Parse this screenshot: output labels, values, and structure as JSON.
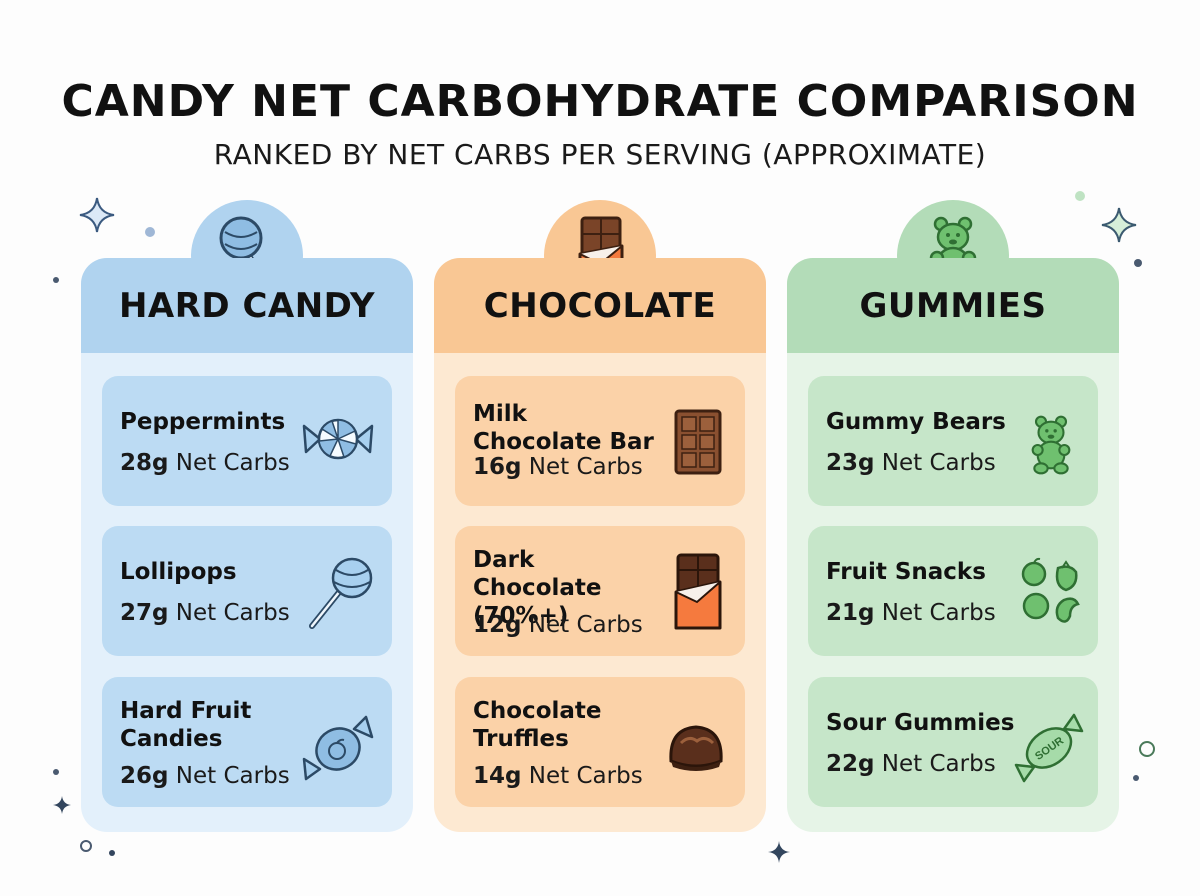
{
  "title": "CANDY NET CARBOHYDRATE COMPARISON",
  "subtitle": "RANKED BY NET CARBS PER SERVING (APPROXIMATE)",
  "colors": {
    "hard_candy": {
      "header": "#b0d3ef",
      "body": "#e3f0fb",
      "card": "#bcdbf3",
      "icon": "#2c4a66"
    },
    "chocolate": {
      "header": "#f9c794",
      "body": "#fde9d2",
      "card": "#fbd2a8",
      "icon": "#6b3a1e"
    },
    "gummies": {
      "header": "#b3dcb8",
      "body": "#e6f4e7",
      "card": "#c6e6c9",
      "icon": "#3f8d43"
    }
  },
  "columns": [
    {
      "heading": "HARD CANDY",
      "icon": "lollipop-icon",
      "items": [
        {
          "name": "Peppermints",
          "grams": "28g",
          "unit": "Net Carbs",
          "icon": "peppermint-icon"
        },
        {
          "name": "Lollipops",
          "grams": "27g",
          "unit": "Net Carbs",
          "icon": "lollipop-icon"
        },
        {
          "name": "Hard Fruit Candies",
          "grams": "26g",
          "unit": "Net Carbs",
          "icon": "wrapped-fruit-candy-icon"
        }
      ]
    },
    {
      "heading": "CHOCOLATE",
      "icon": "chocolate-bar-icon",
      "items": [
        {
          "name": "Milk Chocolate Bar",
          "grams": "16g",
          "unit": "Net Carbs",
          "icon": "chocolate-bar-icon"
        },
        {
          "name": "Dark Chocolate (70%+)",
          "grams": "12g",
          "unit": "Net Carbs",
          "icon": "wrapped-chocolate-bar-icon"
        },
        {
          "name": "Chocolate Truffles",
          "grams": "14g",
          "unit": "Net Carbs",
          "icon": "truffle-icon"
        }
      ]
    },
    {
      "heading": "GUMMIES",
      "icon": "gummy-bear-icon",
      "items": [
        {
          "name": "Gummy Bears",
          "grams": "23g",
          "unit": "Net Carbs",
          "icon": "gummy-bear-icon"
        },
        {
          "name": "Fruit Snacks",
          "grams": "21g",
          "unit": "Net Carbs",
          "icon": "fruit-snacks-icon"
        },
        {
          "name": "Sour Gummies",
          "grams": "22g",
          "unit": "Net Carbs",
          "icon": "sour-candy-icon",
          "icon_text": "SOUR"
        }
      ]
    }
  ]
}
